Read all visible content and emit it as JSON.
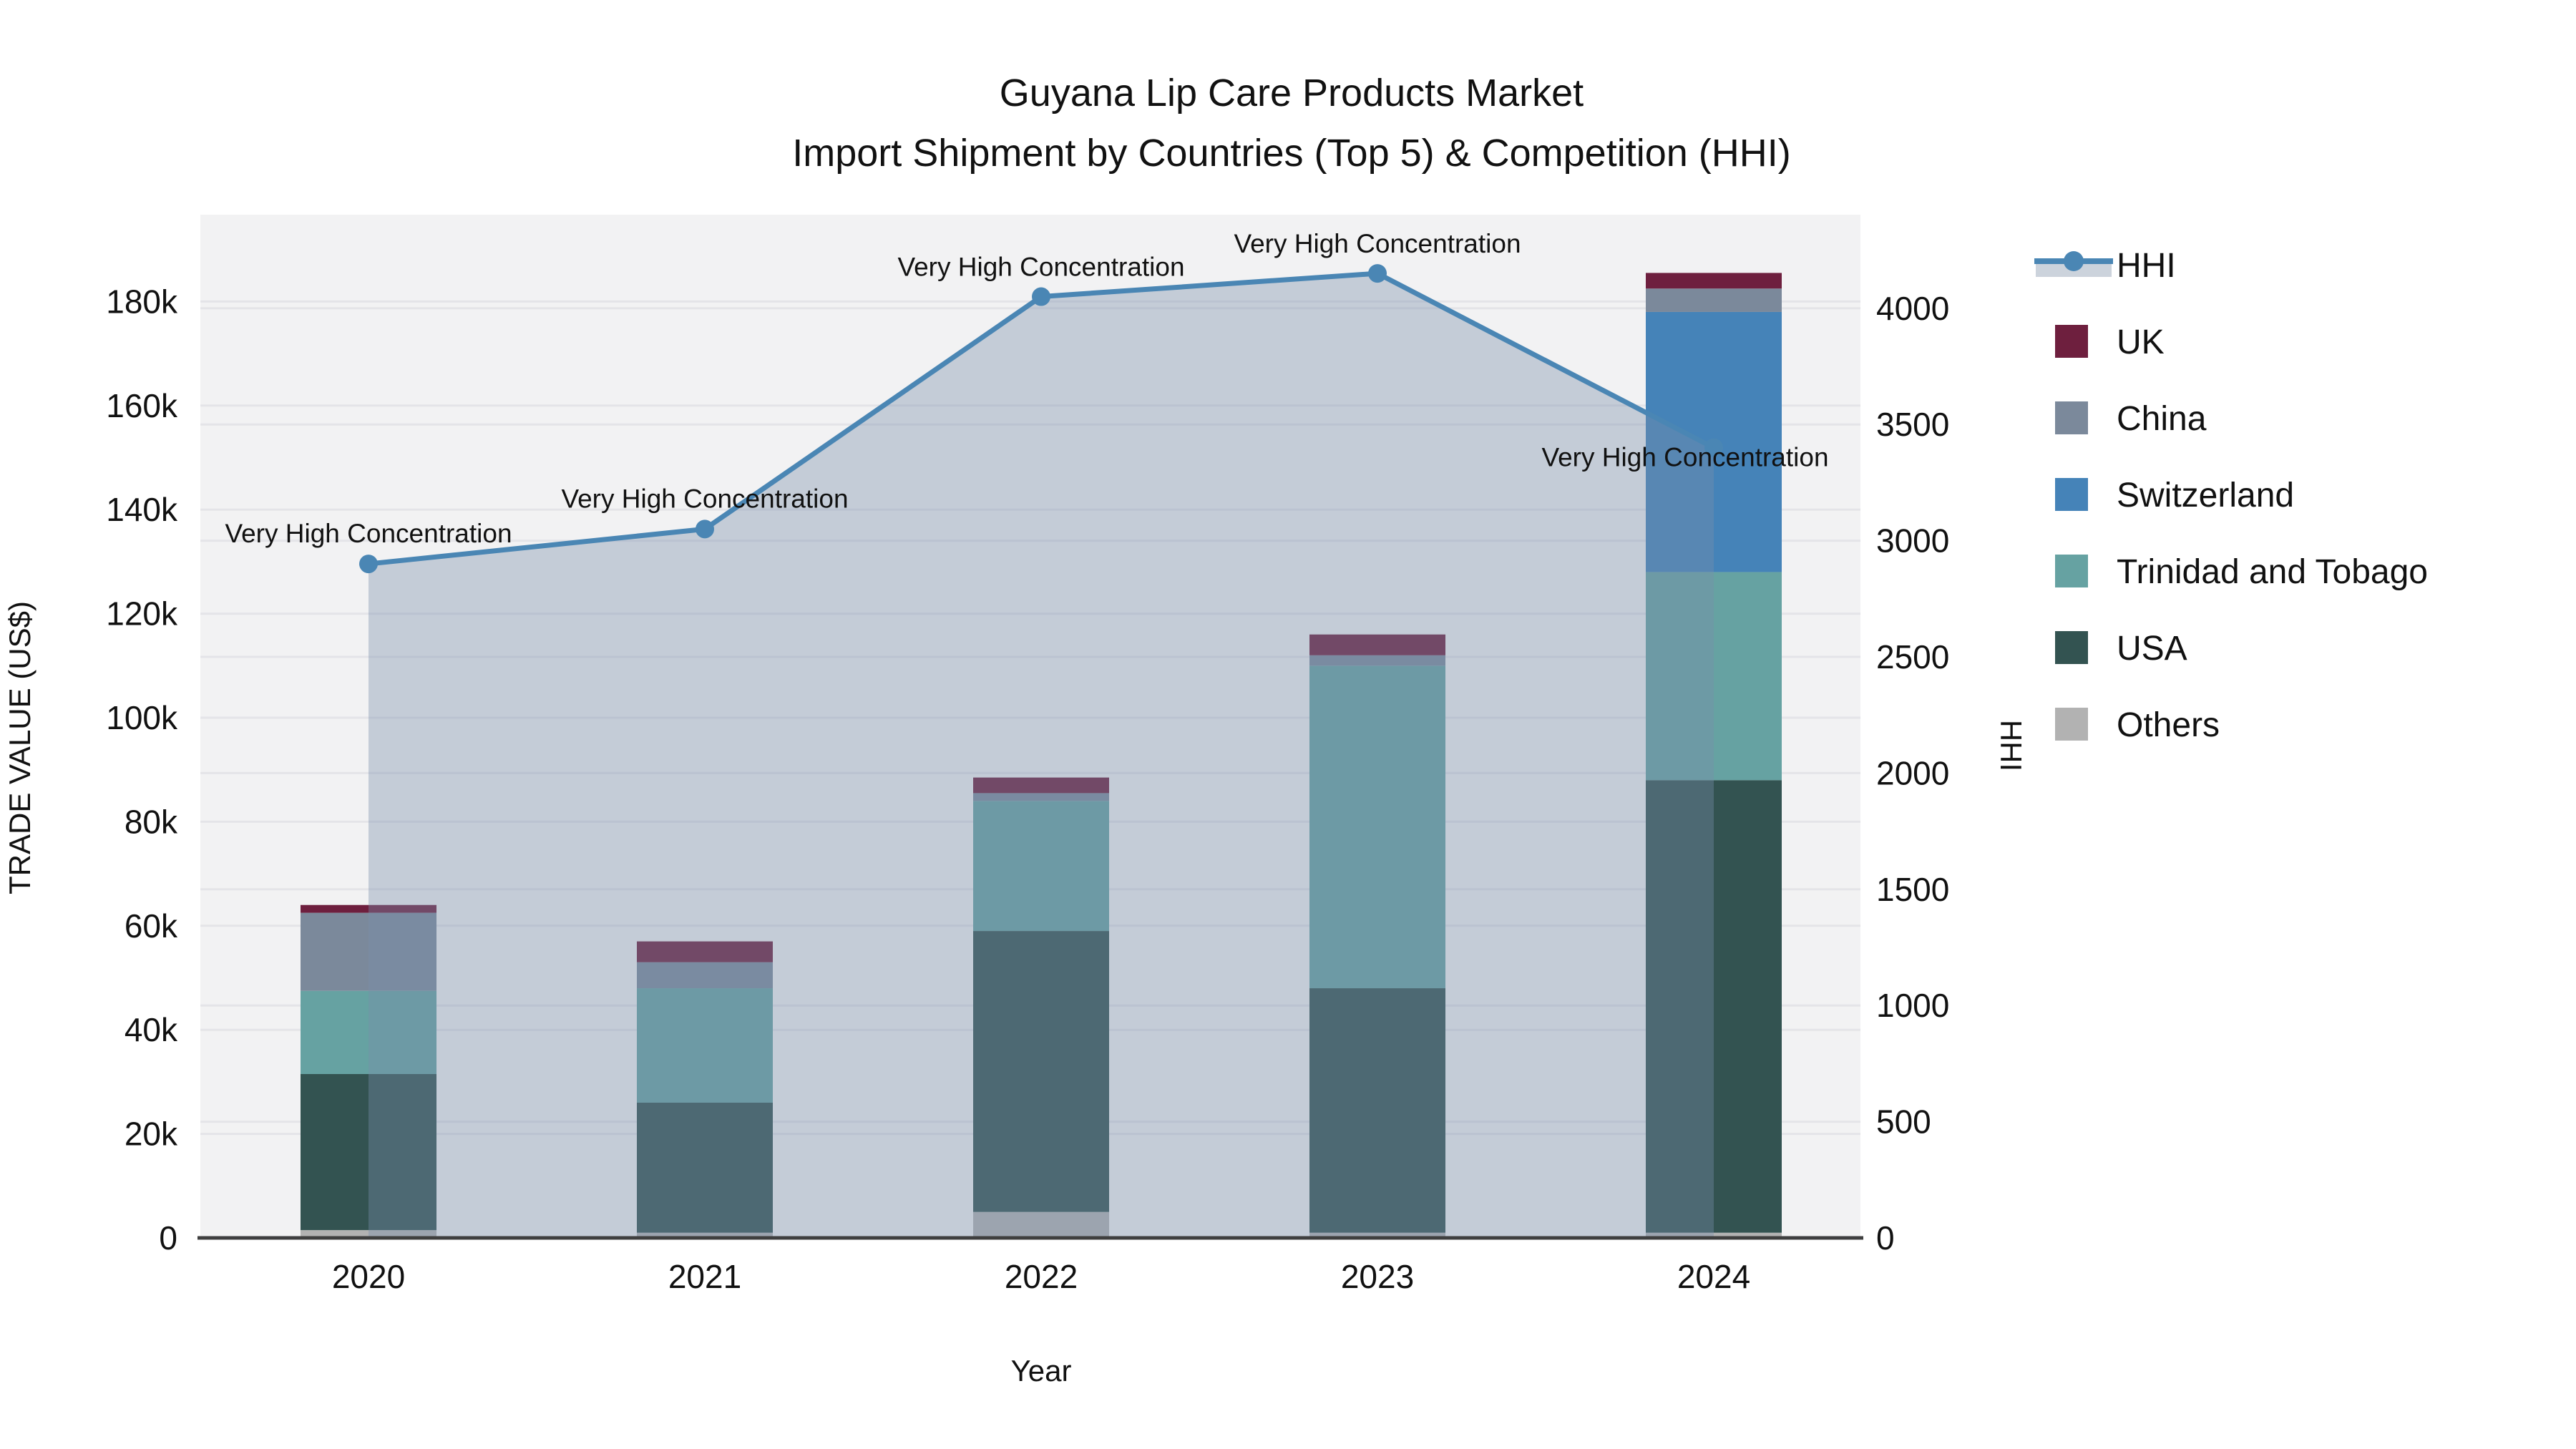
{
  "title": {
    "line1": "Guyana Lip Care Products Market",
    "line2": "Import Shipment by Countries (Top 5) & Competition (HHI)"
  },
  "axes": {
    "left": {
      "title": "TRADE VALUE (US$)",
      "ticks": [
        "0",
        "20k",
        "40k",
        "60k",
        "80k",
        "100k",
        "120k",
        "140k",
        "160k",
        "180k"
      ]
    },
    "right": {
      "title": "HHI",
      "ticks": [
        "0",
        "500",
        "1000",
        "1500",
        "2000",
        "2500",
        "3000",
        "3500",
        "4000"
      ]
    },
    "x": {
      "title": "Year",
      "ticks": [
        "2020",
        "2021",
        "2022",
        "2023",
        "2024"
      ]
    }
  },
  "legend": {
    "items": [
      {
        "label": "HHI",
        "type": "line",
        "color": "#4a86b4",
        "band": "#ccd3dc"
      },
      {
        "label": "UK",
        "type": "swatch",
        "color": "#6e1f3e"
      },
      {
        "label": "China",
        "type": "swatch",
        "color": "#7b899b"
      },
      {
        "label": "Switzerland",
        "type": "swatch",
        "color": "#4583b8"
      },
      {
        "label": "Trinidad and Tobago",
        "type": "swatch",
        "color": "#66a2a2"
      },
      {
        "label": "USA",
        "type": "swatch",
        "color": "#335351"
      },
      {
        "label": "Others",
        "type": "swatch",
        "color": "#b2b2b2"
      }
    ]
  },
  "chart_data": {
    "type": "combo: stacked-bar + line (secondary axis)",
    "title": "Guyana Lip Care Products Market — Import Shipment by Countries (Top 5) & Competition (HHI)",
    "categories": [
      "2020",
      "2021",
      "2022",
      "2023",
      "2024"
    ],
    "bar_unit": "Trade value, US$ (thousands)",
    "bar_series_bottom_to_top": [
      {
        "name": "Others",
        "color": "#b2b2b2",
        "values": [
          1.5,
          1,
          5,
          1,
          1
        ]
      },
      {
        "name": "USA",
        "color": "#335351",
        "values": [
          30,
          25,
          54,
          47,
          87
        ]
      },
      {
        "name": "Trinidad and Tobago",
        "color": "#66a2a2",
        "values": [
          16,
          22,
          25,
          62,
          40
        ]
      },
      {
        "name": "Switzerland",
        "color": "#4583b8",
        "values": [
          0,
          0,
          0,
          0,
          50
        ]
      },
      {
        "name": "China",
        "color": "#7b899b",
        "values": [
          15,
          5,
          1.5,
          2,
          4.5
        ]
      },
      {
        "name": "UK",
        "color": "#6e1f3e",
        "values": [
          1.5,
          4,
          3,
          4,
          3
        ]
      }
    ],
    "bar_totals": [
      64,
      57,
      88.5,
      116,
      185.5
    ],
    "line_series": {
      "name": "HHI",
      "color": "#4a86b4",
      "area_fill": "rgba(122,143,172,0.38)",
      "values": [
        2900,
        3050,
        4050,
        4150,
        3400
      ]
    },
    "annotations": [
      {
        "year": "2020",
        "text": "Very High Concentration"
      },
      {
        "year": "2021",
        "text": "Very High Concentration"
      },
      {
        "year": "2022",
        "text": "Very High Concentration"
      },
      {
        "year": "2023",
        "text": "Very High Concentration"
      },
      {
        "year": "2024",
        "text": "Very High Concentration"
      }
    ],
    "left_axis_range_thousands": [
      0,
      196
    ],
    "right_axis_range": [
      0,
      4400
    ],
    "grid": true,
    "legend_position": "right"
  },
  "colors": {
    "plot_background": "#f2f2f3",
    "gridline": "#e4e4e8",
    "axis_line": "#3f3f3f",
    "text": "#111111"
  }
}
